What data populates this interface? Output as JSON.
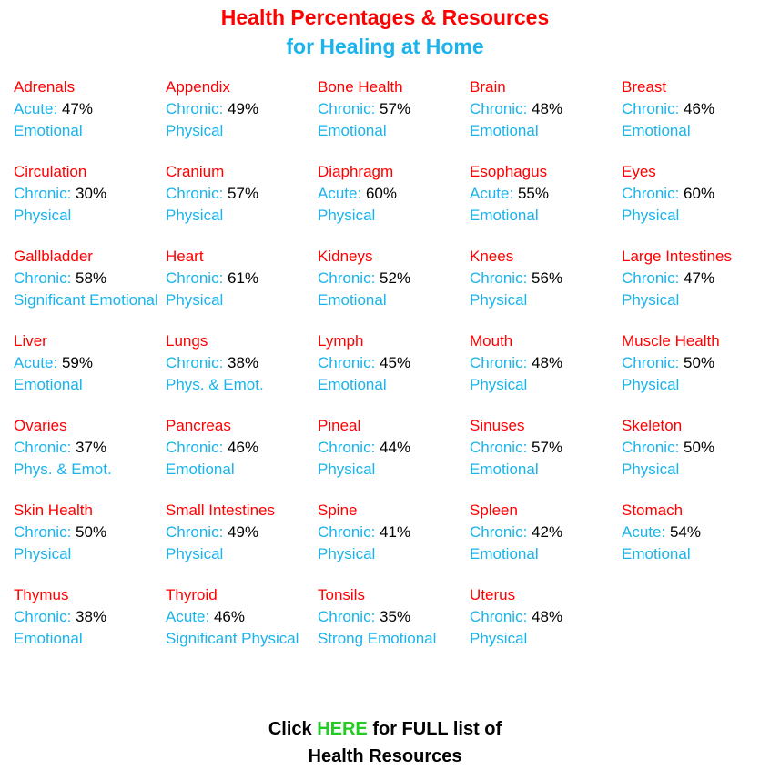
{
  "header": {
    "line1": "Health Percentages & Resources",
    "line2": "for Healing at Home"
  },
  "colors": {
    "name": "#ff0000",
    "type": "#1ab3ec",
    "percent": "#000000",
    "link": "#22cc22"
  },
  "items": [
    {
      "name": "Adrenals",
      "type": "Acute:",
      "percent": "47%",
      "category": "Emotional"
    },
    {
      "name": "Appendix",
      "type": "Chronic:",
      "percent": "49%",
      "category": "Physical"
    },
    {
      "name": "Bone Health",
      "type": "Chronic:",
      "percent": "57%",
      "category": "Emotional"
    },
    {
      "name": "Brain",
      "type": "Chronic:",
      "percent": "48%",
      "category": "Emotional"
    },
    {
      "name": "Breast",
      "type": "Chronic:",
      "percent": "46%",
      "category": "Emotional"
    },
    {
      "name": "Circulation",
      "type": "Chronic:",
      "percent": "30%",
      "category": "Physical"
    },
    {
      "name": "Cranium",
      "type": "Chronic:",
      "percent": "57%",
      "category": "Physical"
    },
    {
      "name": "Diaphragm",
      "type": "Acute:",
      "percent": "60%",
      "category": "Physical"
    },
    {
      "name": "Esophagus",
      "type": "Acute:",
      "percent": "55%",
      "category": "Emotional"
    },
    {
      "name": "Eyes",
      "type": "Chronic:",
      "percent": "60%",
      "category": "Physical"
    },
    {
      "name": "Gallbladder",
      "type": "Chronic:",
      "percent": "58%",
      "category": "Significant Emotional"
    },
    {
      "name": "Heart",
      "type": "Chronic:",
      "percent": "61%",
      "category": "Physical"
    },
    {
      "name": "Kidneys",
      "type": "Chronic:",
      "percent": "52%",
      "category": "Emotional"
    },
    {
      "name": "Knees",
      "type": "Chronic:",
      "percent": "56%",
      "category": "Physical"
    },
    {
      "name": "Large Intestines",
      "type": "Chronic:",
      "percent": "47%",
      "category": "Physical"
    },
    {
      "name": "Liver",
      "type": "Acute:",
      "percent": "59%",
      "category": "Emotional"
    },
    {
      "name": "Lungs",
      "type": "Chronic:",
      "percent": "38%",
      "category": "Phys. & Emot."
    },
    {
      "name": "Lymph",
      "type": "Chronic:",
      "percent": "45%",
      "category": "Emotional"
    },
    {
      "name": "Mouth",
      "type": "Chronic:",
      "percent": "48%",
      "category": "Physical"
    },
    {
      "name": "Muscle Health",
      "type": "Chronic:",
      "percent": "50%",
      "category": "Physical"
    },
    {
      "name": "Ovaries",
      "type": "Chronic:",
      "percent": "37%",
      "category": "Phys. & Emot."
    },
    {
      "name": "Pancreas",
      "type": "Chronic:",
      "percent": "46%",
      "category": "Emotional"
    },
    {
      "name": "Pineal",
      "type": "Chronic:",
      "percent": "44%",
      "category": "Physical"
    },
    {
      "name": "Sinuses",
      "type": "Chronic:",
      "percent": "57%",
      "category": "Emotional"
    },
    {
      "name": "Skeleton",
      "type": "Chronic:",
      "percent": "50%",
      "category": "Physical"
    },
    {
      "name": "Skin Health",
      "type": "Chronic:",
      "percent": "50%",
      "category": "Physical"
    },
    {
      "name": "Small Intestines",
      "type": "Chronic:",
      "percent": "49%",
      "category": "Physical"
    },
    {
      "name": "Spine",
      "type": "Chronic:",
      "percent": "41%",
      "category": "Physical"
    },
    {
      "name": "Spleen",
      "type": "Chronic:",
      "percent": "42%",
      "category": "Emotional"
    },
    {
      "name": "Stomach",
      "type": "Acute:",
      "percent": "54%",
      "category": "Emotional"
    },
    {
      "name": "Thymus",
      "type": "Chronic:",
      "percent": "38%",
      "category": "Emotional"
    },
    {
      "name": "Thyroid",
      "type": "Acute:",
      "percent": "46%",
      "category": "Significant Physical"
    },
    {
      "name": "Tonsils",
      "type": "Chronic:",
      "percent": "35%",
      "category": "Strong Emotional"
    },
    {
      "name": "Uterus",
      "type": "Chronic:",
      "percent": "48%",
      "category": "Physical"
    }
  ],
  "footer": {
    "prefix": "Click",
    "link": "HERE",
    "suffix": "for FULL list of",
    "line2": "Health Resources"
  }
}
